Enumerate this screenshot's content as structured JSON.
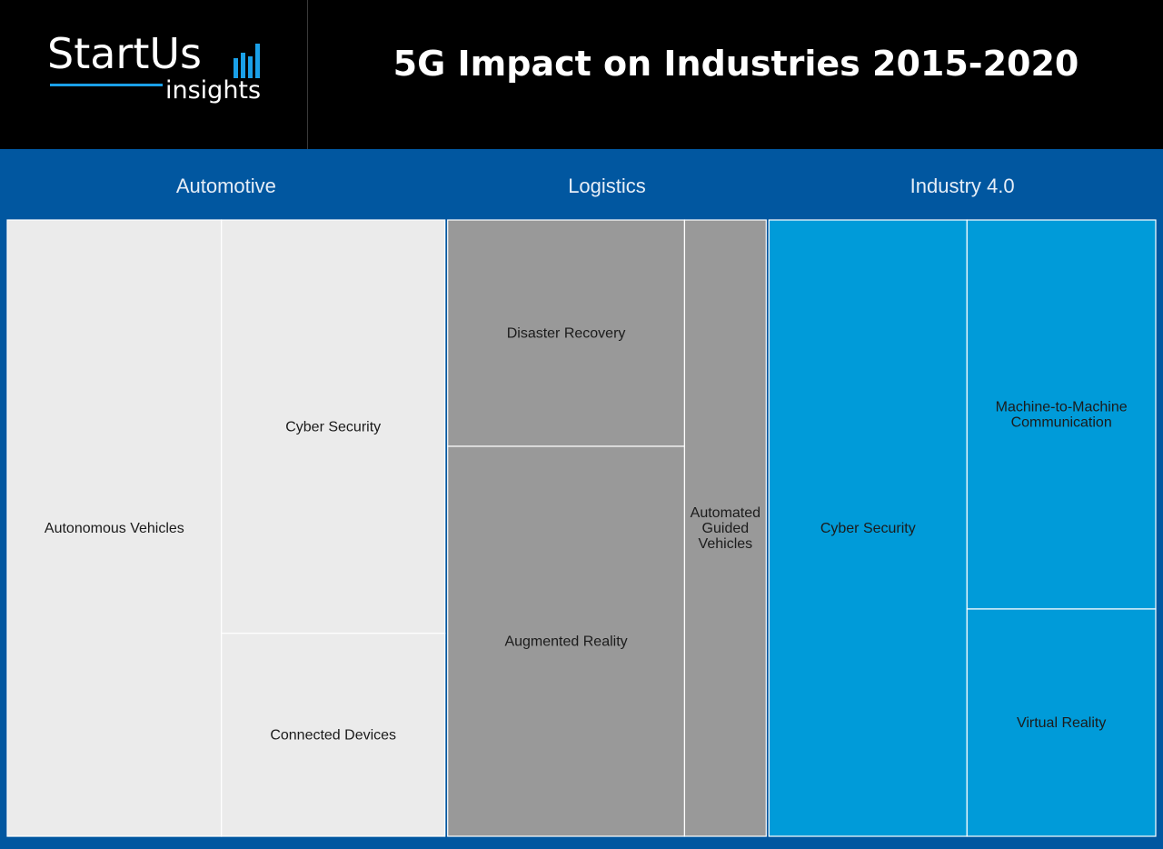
{
  "logo": {
    "wordmark": "StartUs",
    "subtitle": "insights"
  },
  "colors": {
    "background": "#0157a0",
    "automotive": "#ebebeb",
    "logistics": "#999999",
    "industry": "#009bd9"
  },
  "chart_data": {
    "type": "treemap",
    "title": "5G Impact on Industries 2015-2020",
    "groups": [
      {
        "name": "Automotive",
        "color": "#ebebeb",
        "children": [
          {
            "name": "Autonomous Vehicles",
            "value": 160
          },
          {
            "name": "Cyber Security",
            "value": 112
          },
          {
            "name": "Connected Devices",
            "value": 55
          }
        ]
      },
      {
        "name": "Logistics",
        "color": "#999999",
        "children": [
          {
            "name": "Disaster Recovery",
            "value": 65
          },
          {
            "name": "Augmented Reality",
            "value": 112
          },
          {
            "name": "Automated Guided Vehicles",
            "value": 61
          }
        ]
      },
      {
        "name": "Industry 4.0",
        "color": "#009bd9",
        "children": [
          {
            "name": "Cyber Security",
            "value": 148
          },
          {
            "name": "Machine-to-Machine Communication",
            "value": 89
          },
          {
            "name": "Virtual Reality",
            "value": 52
          }
        ]
      }
    ]
  }
}
